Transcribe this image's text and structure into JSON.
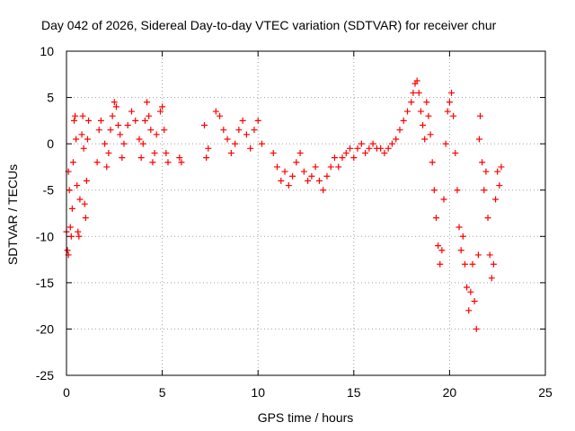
{
  "chart_data": {
    "type": "scatter",
    "title": "Day 042 of 2026, Sidereal Day-to-day VTEC variation (SDTVAR) for receiver chur",
    "xlabel": "GPS time / hours",
    "ylabel": "SDTVAR / TECUs",
    "xlim": [
      0,
      25
    ],
    "ylim": [
      -25,
      10
    ],
    "xticks": [
      "0",
      "5",
      "10",
      "15",
      "20",
      "25"
    ],
    "yticks": [
      "-25",
      "-20",
      "-15",
      "-10",
      "-5",
      "0",
      "5",
      "10"
    ],
    "grid": true,
    "marker": "plus",
    "color": "#ff0000",
    "series": [
      {
        "name": "SDTVAR",
        "points": [
          [
            0.0,
            -9.5
          ],
          [
            0.05,
            -11.5
          ],
          [
            0.1,
            -12.0
          ],
          [
            0.1,
            -3.0
          ],
          [
            0.15,
            -5.0
          ],
          [
            0.2,
            -9.0
          ],
          [
            0.25,
            -10.0
          ],
          [
            0.3,
            -7.0
          ],
          [
            0.35,
            -2.0
          ],
          [
            0.4,
            2.5
          ],
          [
            0.45,
            3.0
          ],
          [
            0.5,
            0.5
          ],
          [
            0.55,
            -4.5
          ],
          [
            0.6,
            -9.5
          ],
          [
            0.65,
            -10.0
          ],
          [
            0.7,
            -6.0
          ],
          [
            0.8,
            1.0
          ],
          [
            0.85,
            3.0
          ],
          [
            0.9,
            -0.5
          ],
          [
            0.95,
            -6.5
          ],
          [
            1.0,
            -8.0
          ],
          [
            1.05,
            -4.0
          ],
          [
            1.1,
            0.5
          ],
          [
            1.15,
            2.5
          ],
          [
            1.6,
            -2.0
          ],
          [
            1.7,
            1.5
          ],
          [
            1.8,
            2.5
          ],
          [
            2.0,
            0.0
          ],
          [
            2.1,
            -2.5
          ],
          [
            2.2,
            -1.0
          ],
          [
            2.3,
            1.5
          ],
          [
            2.4,
            3.0
          ],
          [
            2.5,
            4.5
          ],
          [
            2.6,
            4.0
          ],
          [
            2.7,
            2.0
          ],
          [
            2.8,
            1.0
          ],
          [
            2.9,
            -1.5
          ],
          [
            3.0,
            0.0
          ],
          [
            3.2,
            2.0
          ],
          [
            3.4,
            3.5
          ],
          [
            3.6,
            2.5
          ],
          [
            3.8,
            0.5
          ],
          [
            3.9,
            -1.5
          ],
          [
            4.0,
            0.0
          ],
          [
            4.1,
            2.5
          ],
          [
            4.2,
            4.5
          ],
          [
            4.3,
            3.0
          ],
          [
            4.4,
            1.5
          ],
          [
            4.5,
            -2.0
          ],
          [
            4.6,
            -1.0
          ],
          [
            4.7,
            1.0
          ],
          [
            4.9,
            3.5
          ],
          [
            5.0,
            4.0
          ],
          [
            5.1,
            1.5
          ],
          [
            5.2,
            -1.0
          ],
          [
            5.3,
            -2.0
          ],
          [
            5.9,
            -1.5
          ],
          [
            6.0,
            -2.0
          ],
          [
            7.2,
            2.0
          ],
          [
            7.3,
            -1.5
          ],
          [
            7.4,
            -0.5
          ],
          [
            7.8,
            3.5
          ],
          [
            8.0,
            3.0
          ],
          [
            8.2,
            1.5
          ],
          [
            8.4,
            0.5
          ],
          [
            8.6,
            -1.0
          ],
          [
            8.8,
            0.0
          ],
          [
            9.0,
            1.5
          ],
          [
            9.2,
            2.5
          ],
          [
            9.4,
            1.0
          ],
          [
            9.6,
            -0.5
          ],
          [
            9.8,
            1.5
          ],
          [
            10.0,
            2.5
          ],
          [
            10.2,
            0.0
          ],
          [
            10.8,
            -1.0
          ],
          [
            11.0,
            -2.5
          ],
          [
            11.2,
            -4.0
          ],
          [
            11.4,
            -3.0
          ],
          [
            11.6,
            -4.5
          ],
          [
            11.8,
            -3.5
          ],
          [
            12.0,
            -2.0
          ],
          [
            12.2,
            -1.0
          ],
          [
            12.4,
            -3.0
          ],
          [
            12.6,
            -4.0
          ],
          [
            12.8,
            -3.5
          ],
          [
            13.0,
            -2.5
          ],
          [
            13.2,
            -4.0
          ],
          [
            13.4,
            -5.0
          ],
          [
            13.6,
            -3.5
          ],
          [
            13.8,
            -2.5
          ],
          [
            14.0,
            -1.5
          ],
          [
            14.2,
            -2.5
          ],
          [
            14.4,
            -1.5
          ],
          [
            14.6,
            -1.0
          ],
          [
            14.8,
            -0.5
          ],
          [
            15.0,
            -1.5
          ],
          [
            15.2,
            -0.5
          ],
          [
            15.4,
            0.0
          ],
          [
            15.6,
            -1.0
          ],
          [
            15.8,
            -0.5
          ],
          [
            16.0,
            0.0
          ],
          [
            16.2,
            -0.5
          ],
          [
            16.4,
            -0.5
          ],
          [
            16.6,
            -1.0
          ],
          [
            16.8,
            -0.5
          ],
          [
            17.0,
            0.0
          ],
          [
            17.2,
            0.5
          ],
          [
            17.4,
            1.5
          ],
          [
            17.6,
            2.5
          ],
          [
            17.8,
            3.5
          ],
          [
            18.0,
            4.5
          ],
          [
            18.1,
            5.5
          ],
          [
            18.2,
            6.5
          ],
          [
            18.3,
            6.8
          ],
          [
            18.4,
            5.5
          ],
          [
            18.5,
            3.5
          ],
          [
            18.6,
            2.0
          ],
          [
            18.7,
            0.5
          ],
          [
            18.8,
            4.5
          ],
          [
            18.9,
            3.0
          ],
          [
            19.0,
            1.0
          ],
          [
            19.1,
            -2.0
          ],
          [
            19.2,
            -5.0
          ],
          [
            19.3,
            -8.0
          ],
          [
            19.4,
            -11.0
          ],
          [
            19.5,
            -13.0
          ],
          [
            19.6,
            -11.5
          ],
          [
            19.7,
            -6.0
          ],
          [
            19.8,
            0.0
          ],
          [
            19.9,
            3.5
          ],
          [
            20.0,
            4.5
          ],
          [
            20.1,
            5.5
          ],
          [
            20.2,
            3.0
          ],
          [
            20.3,
            -1.0
          ],
          [
            20.4,
            -5.0
          ],
          [
            20.5,
            -9.0
          ],
          [
            20.6,
            -11.5
          ],
          [
            20.7,
            -10.0
          ],
          [
            20.8,
            -13.0
          ],
          [
            20.9,
            -15.5
          ],
          [
            21.0,
            -18.0
          ],
          [
            21.1,
            -16.0
          ],
          [
            21.2,
            -13.0
          ],
          [
            21.3,
            -17.0
          ],
          [
            21.4,
            -20.0
          ],
          [
            21.5,
            -12.0
          ],
          [
            21.55,
            0.5
          ],
          [
            21.6,
            3.0
          ],
          [
            21.7,
            -2.0
          ],
          [
            21.8,
            -5.0
          ],
          [
            21.9,
            -3.0
          ],
          [
            22.0,
            -8.0
          ],
          [
            22.1,
            -12.0
          ],
          [
            22.2,
            -14.5
          ],
          [
            22.3,
            -13.0
          ],
          [
            22.4,
            -6.0
          ],
          [
            22.5,
            -3.0
          ],
          [
            22.6,
            -4.5
          ],
          [
            22.7,
            -2.5
          ]
        ]
      }
    ]
  }
}
